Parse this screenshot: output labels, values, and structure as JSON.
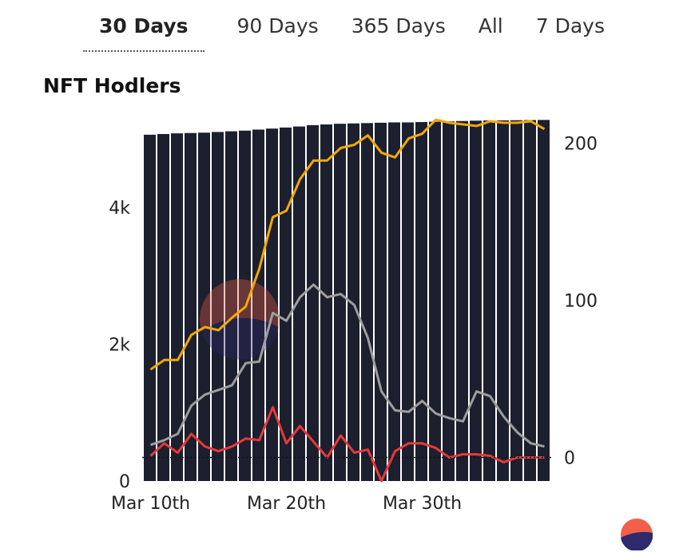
{
  "tabs": [
    "30 Days",
    "90 Days",
    "365 Days",
    "All",
    "7 Days"
  ],
  "active_tab": "30 Days",
  "colors": {
    "bars": "#1c1f2e",
    "orange": "#f5a800",
    "gray": "#9e9e9e",
    "red": "#e8383b",
    "logo_top": "#f2604a",
    "logo_bottom": "#2f2a6b"
  },
  "chart_data": {
    "type": "bar",
    "title": "NFT Hodlers",
    "x_ticks": [
      "Mar 10th",
      "Mar 20th",
      "Mar 30th"
    ],
    "x_tick_index": [
      0,
      10,
      20
    ],
    "y_left": {
      "ticks": [
        "0",
        "2k",
        "4k"
      ],
      "tick_values": [
        0,
        2000,
        4000
      ],
      "range": [
        0,
        5280
      ]
    },
    "y_right": {
      "ticks": [
        "0",
        "100",
        "200"
      ],
      "tick_values": [
        0,
        100,
        200
      ],
      "range": [
        -15,
        215
      ]
    },
    "legend": "none",
    "series": [
      {
        "name": "Hodlers",
        "kind": "bar",
        "axis": "left",
        "values": [
          5060,
          5070,
          5080,
          5085,
          5090,
          5100,
          5110,
          5120,
          5135,
          5150,
          5165,
          5180,
          5200,
          5210,
          5220,
          5225,
          5230,
          5235,
          5240,
          5240,
          5245,
          5250,
          5255,
          5260,
          5265,
          5268,
          5270,
          5272,
          5274,
          5276
        ]
      },
      {
        "name": "Orange line",
        "kind": "line",
        "axis": "right",
        "values": [
          56,
          62,
          62,
          78,
          83,
          81,
          89,
          96,
          120,
          153,
          157,
          177,
          189,
          189,
          197,
          199,
          205,
          194,
          191,
          203,
          206,
          215,
          213,
          212,
          211,
          214,
          213,
          213,
          214,
          209
        ]
      },
      {
        "name": "Gray line",
        "kind": "line",
        "axis": "right",
        "values": [
          8,
          11,
          15,
          33,
          40,
          43,
          46,
          60,
          61,
          92,
          87,
          102,
          110,
          102,
          104,
          97,
          76,
          42,
          30,
          29,
          36,
          28,
          25,
          23,
          42,
          39,
          26,
          16,
          9,
          7
        ]
      },
      {
        "name": "Red line",
        "kind": "line",
        "axis": "right",
        "values": [
          1,
          9,
          3,
          15,
          7,
          4,
          7,
          12,
          11,
          32,
          9,
          20,
          10,
          0,
          14,
          3,
          5,
          -15,
          4,
          9,
          9,
          6,
          0,
          2,
          2,
          1,
          -3,
          0,
          0,
          0
        ]
      }
    ]
  }
}
